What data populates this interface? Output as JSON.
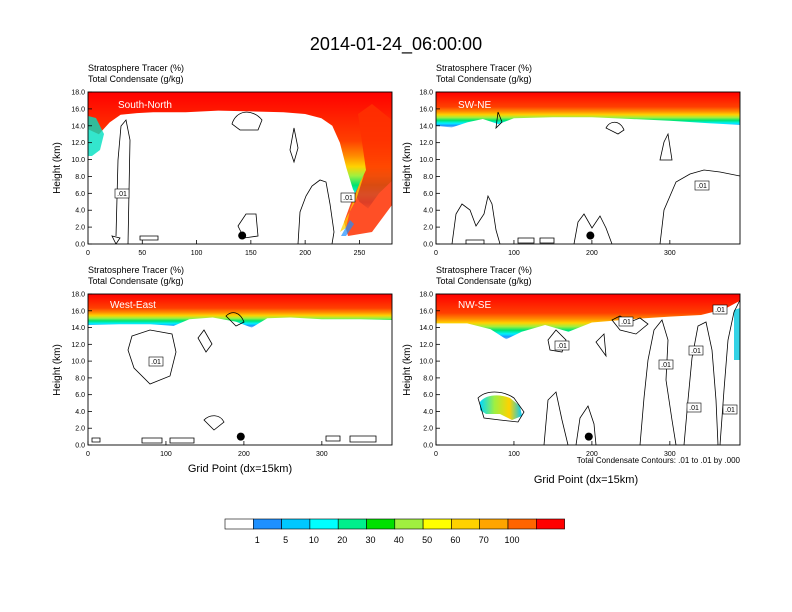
{
  "figure": {
    "title": "2014-01-24_06:00:00",
    "footnote": "Total Condensate Contours: .01 to .01 by .000"
  },
  "colorbar": {
    "tick_labels": [
      "1",
      "5",
      "10",
      "20",
      "30",
      "40",
      "50",
      "60",
      "70",
      "100"
    ],
    "colors": [
      "#ffffff",
      "#1e90ff",
      "#00c8ff",
      "#00ffff",
      "#00f08c",
      "#00e000",
      "#a0f040",
      "#ffff00",
      "#ffd200",
      "#ffa500",
      "#ff6400",
      "#ff0000"
    ]
  },
  "chart_data": [
    {
      "type": "heatmap",
      "panel": "South-North",
      "label_line1": "Stratosphere Tracer   (%)",
      "label_line2": "Total Condensate   (g/kg)",
      "xlabel": "",
      "ylabel": "Height (km)",
      "xlim": [
        0,
        280
      ],
      "ylim": [
        0,
        18
      ],
      "xticks": [
        "0",
        "50",
        "100",
        "150",
        "200",
        "250"
      ],
      "yticks": [
        "0.0",
        "2.0",
        "4.0",
        "6.0",
        "8.0",
        "10.0",
        "12.0",
        "14.0",
        "16.0",
        "18.0"
      ],
      "marker_x": 142,
      "contour_labels": [
        ".01",
        ".01"
      ],
      "tropopause_km": [
        [
          0,
          13.6
        ],
        [
          10,
          13.0
        ],
        [
          20,
          14.4
        ],
        [
          30,
          15.3
        ],
        [
          45,
          15.5
        ],
        [
          60,
          15.6
        ],
        [
          90,
          15.6
        ],
        [
          120,
          15.8
        ],
        [
          150,
          15.7
        ],
        [
          180,
          15.6
        ],
        [
          200,
          15.4
        ],
        [
          215,
          14.9
        ],
        [
          225,
          14.0
        ],
        [
          232,
          12.0
        ],
        [
          238,
          9.0
        ],
        [
          244,
          6.5
        ],
        [
          250,
          5.0
        ],
        [
          258,
          4.2
        ],
        [
          268,
          6.0
        ],
        [
          280,
          7.5
        ]
      ]
    },
    {
      "type": "heatmap",
      "panel": "SW-NE",
      "label_line1": "Stratosphere Tracer   (%)",
      "label_line2": "Total Condensate   (g/kg)",
      "xlabel": "",
      "ylabel": "Height (km)",
      "xlim": [
        0,
        390
      ],
      "ylim": [
        0,
        18
      ],
      "xticks": [
        "0",
        "100",
        "200",
        "300"
      ],
      "yticks": [
        "0.0",
        "2.0",
        "4.0",
        "6.0",
        "8.0",
        "10.0",
        "12.0",
        "14.0",
        "16.0",
        "18.0"
      ],
      "marker_x": 198,
      "contour_labels": [
        ".01"
      ],
      "tropopause_km": [
        [
          0,
          14.0
        ],
        [
          20,
          13.8
        ],
        [
          40,
          14.4
        ],
        [
          60,
          14.8
        ],
        [
          80,
          14.2
        ],
        [
          100,
          14.9
        ],
        [
          150,
          15.0
        ],
        [
          200,
          15.0
        ],
        [
          250,
          14.8
        ],
        [
          300,
          14.6
        ],
        [
          350,
          14.3
        ],
        [
          390,
          14.1
        ]
      ]
    },
    {
      "type": "heatmap",
      "panel": "West-East",
      "label_line1": "Stratosphere Tracer   (%)",
      "label_line2": "Total Condensate   (g/kg)",
      "xlabel": "Grid Point (dx=15km)",
      "ylabel": "Height (km)",
      "xlim": [
        0,
        390
      ],
      "ylim": [
        0,
        18
      ],
      "xticks": [
        "0",
        "100",
        "200",
        "300"
      ],
      "yticks": [
        "0.0",
        "2.0",
        "4.0",
        "6.0",
        "8.0",
        "10.0",
        "12.0",
        "14.0",
        "16.0",
        "18.0"
      ],
      "marker_x": 196,
      "contour_labels": [
        ".01"
      ],
      "tropopause_km": [
        [
          0,
          14.3
        ],
        [
          40,
          14.4
        ],
        [
          80,
          14.4
        ],
        [
          110,
          14.2
        ],
        [
          130,
          15.0
        ],
        [
          160,
          15.2
        ],
        [
          190,
          14.7
        ],
        [
          210,
          14.0
        ],
        [
          230,
          15.1
        ],
        [
          260,
          15.2
        ],
        [
          300,
          15.0
        ],
        [
          350,
          15.0
        ],
        [
          390,
          14.9
        ]
      ]
    },
    {
      "type": "heatmap",
      "panel": "NW-SE",
      "label_line1": "",
      "label_line2": "",
      "xlabel": "Grid Point (dx=15km)",
      "ylabel": "Height (km)",
      "xlim": [
        0,
        390
      ],
      "ylim": [
        0,
        18
      ],
      "xticks": [
        "0",
        "100",
        "200",
        "300"
      ],
      "yticks": [
        "0.0",
        "2.0",
        "4.0",
        "6.0",
        "8.0",
        "10.0",
        "12.0",
        "14.0",
        "16.0",
        "18.0"
      ],
      "marker_x": 196,
      "contour_labels": [
        ".01",
        ".01",
        ".01",
        ".01",
        ".01",
        ".01",
        ".01"
      ],
      "tropopause_km": [
        [
          0,
          14.5
        ],
        [
          40,
          14.5
        ],
        [
          70,
          13.8
        ],
        [
          90,
          12.6
        ],
        [
          110,
          13.5
        ],
        [
          140,
          14.3
        ],
        [
          170,
          13.5
        ],
        [
          200,
          14.6
        ],
        [
          250,
          15.0
        ],
        [
          300,
          15.3
        ],
        [
          340,
          15.5
        ],
        [
          370,
          16.2
        ],
        [
          390,
          17.2
        ]
      ]
    }
  ],
  "panel_labels_nwse": {
    "label_line1": "Stratosphere Tracer   (%)",
    "label_line2": "Total Condensate   (g/kg)"
  }
}
